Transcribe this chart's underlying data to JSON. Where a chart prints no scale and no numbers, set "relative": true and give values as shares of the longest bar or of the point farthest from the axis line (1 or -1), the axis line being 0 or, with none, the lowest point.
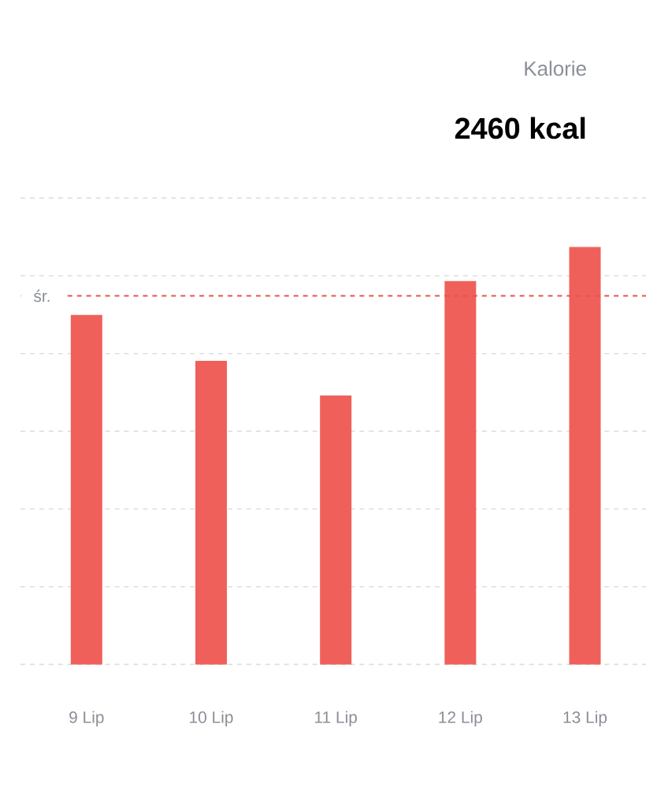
{
  "chart_data": {
    "type": "bar",
    "title": "Kalorie",
    "subtitle": "2460 kcal",
    "categories": [
      "9 Lip",
      "10 Lip",
      "11 Lip",
      "12 Lip",
      "13 Lip"
    ],
    "values": [
      0.837,
      0.727,
      0.644,
      0.918,
      1
    ],
    "color": "#f0605a",
    "relative": true,
    "grid": "y",
    "ref_lines": [
      {
        "axis": "y",
        "value": 0.883,
        "label": "śr.",
        "color": "#e8534f",
        "line_style": "dashed"
      }
    ]
  }
}
